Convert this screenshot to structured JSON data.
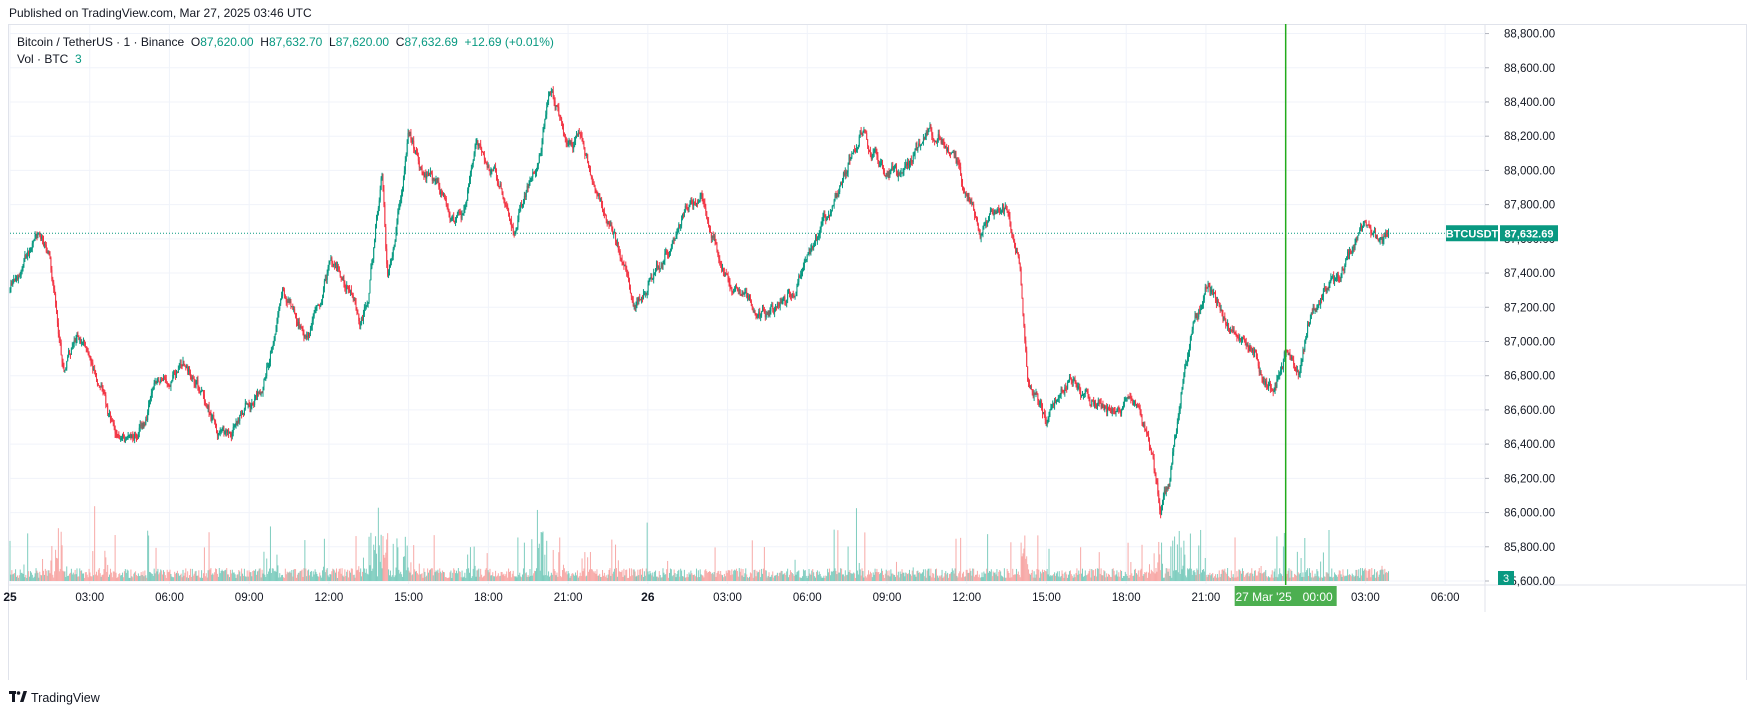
{
  "header": {
    "published": "Published on TradingView.com, Mar 27, 2025 03:46 UTC"
  },
  "legend": {
    "symbol": "Bitcoin / TetherUS · 1 · Binance",
    "o_label": "O",
    "o": "87,620.00",
    "h_label": "H",
    "h": "87,632.70",
    "l_label": "L",
    "l": "87,620.00",
    "c_label": "C",
    "c": "87,632.69",
    "change": "+12.69 (+0.01%)",
    "vol_label": "Vol · BTC",
    "vol": "3"
  },
  "colors": {
    "up": "#089981",
    "down": "#f23645",
    "vol_up": "#7fcdbf",
    "vol_down": "#f7a9a7",
    "crosshair": "#22ab1c",
    "grid": "#f0f3fa",
    "price_tag": "#089981",
    "time_tag": "#4caf50"
  },
  "price_tag": {
    "symbol": "BTCUSDT",
    "value": "87,632.69"
  },
  "volume_tag": {
    "value": "3"
  },
  "crosshair_time_label": {
    "date": "27 Mar '25",
    "time": "00:00"
  },
  "footer": {
    "brand": "TradingView"
  },
  "chart_data": {
    "type": "candlestick",
    "title": "Bitcoin / TetherUS · 1 · Binance",
    "ylim": [
      85600,
      88850
    ],
    "y_ticks": [
      {
        "value": 88800,
        "label": "88,800.00"
      },
      {
        "value": 88600,
        "label": "88,600.00"
      },
      {
        "value": 88400,
        "label": "88,400.00"
      },
      {
        "value": 88200,
        "label": "88,200.00"
      },
      {
        "value": 88000,
        "label": "88,000.00"
      },
      {
        "value": 87800,
        "label": "87,800.00"
      },
      {
        "value": 87600,
        "label": "87,600.00"
      },
      {
        "value": 87400,
        "label": "87,400.00"
      },
      {
        "value": 87200,
        "label": "87,200.00"
      },
      {
        "value": 87000,
        "label": "87,000.00"
      },
      {
        "value": 86800,
        "label": "86,800.00"
      },
      {
        "value": 86600,
        "label": "86,600.00"
      },
      {
        "value": 86400,
        "label": "86,400.00"
      },
      {
        "value": 86200,
        "label": "86,200.00"
      },
      {
        "value": 86000,
        "label": "86,000.00"
      },
      {
        "value": 85800,
        "label": "85,800.00"
      },
      {
        "value": 85600,
        "label": "85,600.00"
      }
    ],
    "x_ticks": [
      {
        "hour": 0,
        "label": "25",
        "bold": true
      },
      {
        "hour": 3,
        "label": "03:00"
      },
      {
        "hour": 6,
        "label": "06:00"
      },
      {
        "hour": 9,
        "label": "09:00"
      },
      {
        "hour": 12,
        "label": "12:00"
      },
      {
        "hour": 15,
        "label": "15:00"
      },
      {
        "hour": 18,
        "label": "18:00"
      },
      {
        "hour": 21,
        "label": "21:00"
      },
      {
        "hour": 24,
        "label": "26",
        "bold": true
      },
      {
        "hour": 27,
        "label": "03:00"
      },
      {
        "hour": 30,
        "label": "06:00"
      },
      {
        "hour": 33,
        "label": "09:00"
      },
      {
        "hour": 36,
        "label": "12:00"
      },
      {
        "hour": 39,
        "label": "15:00"
      },
      {
        "hour": 42,
        "label": "18:00"
      },
      {
        "hour": 45,
        "label": "21:00"
      },
      {
        "hour": 51,
        "label": "03:00"
      },
      {
        "hour": 54,
        "label": "06:00"
      }
    ],
    "x_range_hours": [
      0,
      55.5
    ],
    "crosshair_hour": 48,
    "last_price": 87632.69,
    "price_path": [
      [
        0,
        87300
      ],
      [
        0.6,
        87520
      ],
      [
        1.0,
        87650
      ],
      [
        1.5,
        87500
      ],
      [
        2.0,
        86850
      ],
      [
        2.5,
        87050
      ],
      [
        3.0,
        86900
      ],
      [
        3.5,
        86650
      ],
      [
        4.0,
        86400
      ],
      [
        4.5,
        86450
      ],
      [
        5.0,
        86500
      ],
      [
        5.5,
        86750
      ],
      [
        6.0,
        86750
      ],
      [
        6.5,
        86850
      ],
      [
        7.0,
        86800
      ],
      [
        7.5,
        86600
      ],
      [
        8.0,
        86450
      ],
      [
        8.5,
        86500
      ],
      [
        9.0,
        86650
      ],
      [
        9.5,
        86750
      ],
      [
        10.0,
        87100
      ],
      [
        10.3,
        87300
      ],
      [
        10.8,
        87100
      ],
      [
        11.2,
        87050
      ],
      [
        11.7,
        87250
      ],
      [
        12.0,
        87450
      ],
      [
        12.5,
        87400
      ],
      [
        12.8,
        87300
      ],
      [
        13.2,
        87100
      ],
      [
        13.5,
        87250
      ],
      [
        13.8,
        87700
      ],
      [
        14.0,
        87950
      ],
      [
        14.2,
        87350
      ],
      [
        14.5,
        87650
      ],
      [
        15.0,
        88200
      ],
      [
        15.5,
        88000
      ],
      [
        16.0,
        87900
      ],
      [
        16.5,
        87750
      ],
      [
        17.0,
        87700
      ],
      [
        17.5,
        88150
      ],
      [
        18.0,
        88050
      ],
      [
        18.5,
        87900
      ],
      [
        19.0,
        87650
      ],
      [
        19.5,
        87900
      ],
      [
        20.0,
        88150
      ],
      [
        20.3,
        88500
      ],
      [
        20.6,
        88350
      ],
      [
        21.0,
        88150
      ],
      [
        21.5,
        88200
      ],
      [
        22.0,
        87900
      ],
      [
        22.5,
        87700
      ],
      [
        23.0,
        87500
      ],
      [
        23.5,
        87250
      ],
      [
        24.0,
        87350
      ],
      [
        24.5,
        87450
      ],
      [
        25.0,
        87650
      ],
      [
        25.5,
        87800
      ],
      [
        26.0,
        87850
      ],
      [
        26.5,
        87600
      ],
      [
        27.0,
        87400
      ],
      [
        27.5,
        87250
      ],
      [
        28.0,
        87150
      ],
      [
        28.5,
        87150
      ],
      [
        29.0,
        87250
      ],
      [
        29.5,
        87300
      ],
      [
        30.0,
        87500
      ],
      [
        30.5,
        87650
      ],
      [
        31.0,
        87800
      ],
      [
        31.5,
        88000
      ],
      [
        32.0,
        88250
      ],
      [
        32.5,
        88100
      ],
      [
        33.0,
        88000
      ],
      [
        33.5,
        87950
      ],
      [
        34.0,
        88100
      ],
      [
        34.5,
        88200
      ],
      [
        35.0,
        88200
      ],
      [
        35.5,
        88050
      ],
      [
        36.0,
        87850
      ],
      [
        36.5,
        87650
      ],
      [
        37.0,
        87750
      ],
      [
        37.5,
        87750
      ],
      [
        38.0,
        87500
      ],
      [
        38.3,
        86800
      ],
      [
        38.6,
        86700
      ],
      [
        39.0,
        86550
      ],
      [
        39.5,
        86750
      ],
      [
        40.0,
        86800
      ],
      [
        40.5,
        86700
      ],
      [
        41.0,
        86650
      ],
      [
        41.5,
        86600
      ],
      [
        42.0,
        86650
      ],
      [
        42.5,
        86550
      ],
      [
        43.0,
        86300
      ],
      [
        43.3,
        86000
      ],
      [
        43.6,
        86150
      ],
      [
        44.0,
        86650
      ],
      [
        44.5,
        87100
      ],
      [
        45.0,
        87350
      ],
      [
        45.5,
        87200
      ],
      [
        46.0,
        87050
      ],
      [
        46.5,
        86950
      ],
      [
        47.0,
        86850
      ],
      [
        47.5,
        86700
      ],
      [
        48.0,
        86950
      ],
      [
        48.5,
        86850
      ],
      [
        49.0,
        87200
      ],
      [
        49.5,
        87350
      ],
      [
        50.0,
        87350
      ],
      [
        50.5,
        87550
      ],
      [
        51.0,
        87650
      ],
      [
        51.5,
        87550
      ],
      [
        51.9,
        87633
      ]
    ]
  }
}
